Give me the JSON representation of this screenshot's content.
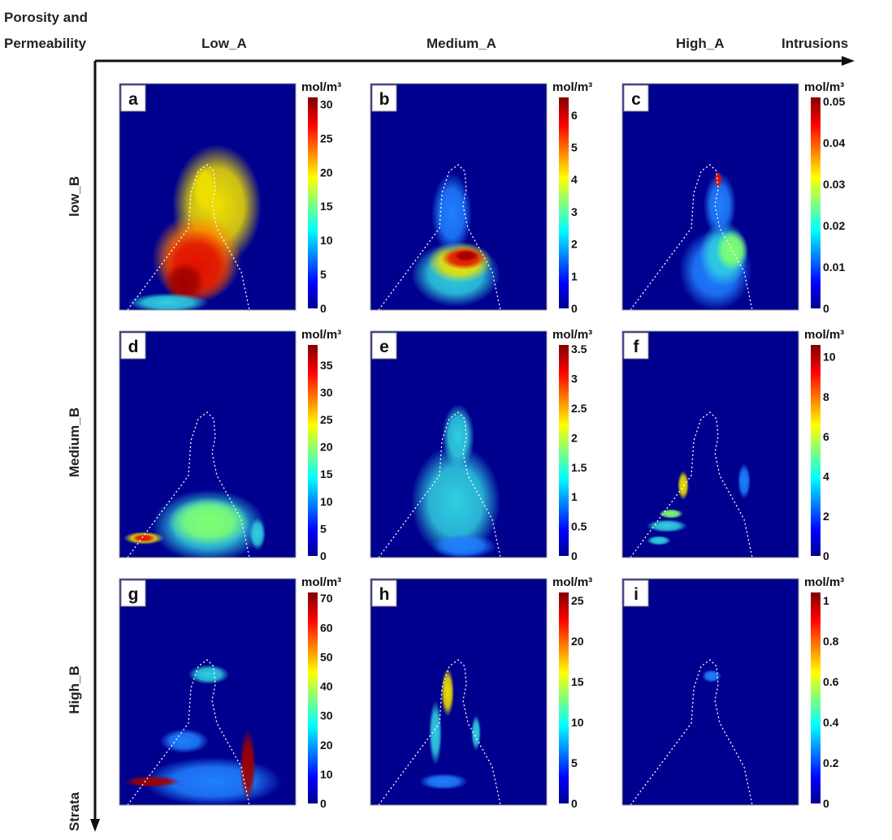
{
  "axes": {
    "corner_label_line1": "Porosity and",
    "corner_label_line2": "Permeability",
    "x_axis_label": "Intrusions",
    "y_axis_label": "Strata",
    "columns": [
      "Low_A",
      "Medium_A",
      "High_A"
    ],
    "rows": [
      "low_B",
      "Medium_B",
      "High_B"
    ]
  },
  "colors": {
    "background": "#00008f",
    "outline": "#ffffff"
  },
  "chart_data": [
    {
      "type": "heatmap",
      "panel": "a",
      "row": "low_B",
      "column": "Low_A",
      "unit": "mol/m³",
      "range": [
        0,
        31
      ],
      "ticks": [
        "0",
        "5",
        "10",
        "15",
        "20",
        "25",
        "30"
      ],
      "tick_values": [
        0,
        5,
        10,
        15,
        20,
        25,
        30
      ]
    },
    {
      "type": "heatmap",
      "panel": "b",
      "row": "low_B",
      "column": "Medium_A",
      "unit": "mol/m³",
      "range": [
        0,
        6.55
      ],
      "ticks": [
        "0",
        "1",
        "2",
        "3",
        "4",
        "5",
        "6"
      ],
      "tick_values": [
        0,
        1,
        2,
        3,
        4,
        5,
        6
      ]
    },
    {
      "type": "heatmap",
      "panel": "c",
      "row": "low_B",
      "column": "High_A",
      "unit": "mol/m³",
      "range": [
        0,
        0.051
      ],
      "ticks": [
        "0",
        "0.01",
        "0.02",
        "0.03",
        "0.04",
        "0.05"
      ],
      "tick_values": [
        0,
        0.01,
        0.02,
        0.03,
        0.04,
        0.05
      ]
    },
    {
      "type": "heatmap",
      "panel": "d",
      "row": "Medium_B",
      "column": "Low_A",
      "unit": "mol/m³",
      "range": [
        0,
        38.7
      ],
      "ticks": [
        "0",
        "5",
        "10",
        "15",
        "20",
        "25",
        "30",
        "35"
      ],
      "tick_values": [
        0,
        5,
        10,
        15,
        20,
        25,
        30,
        35
      ]
    },
    {
      "type": "heatmap",
      "panel": "e",
      "row": "Medium_B",
      "column": "Medium_A",
      "unit": "mol/m³",
      "range": [
        0,
        3.57
      ],
      "ticks": [
        "0",
        "0.5",
        "1",
        "1.5",
        "2",
        "2.5",
        "3",
        "3.5"
      ],
      "tick_values": [
        0,
        0.5,
        1,
        1.5,
        2,
        2.5,
        3,
        3.5
      ]
    },
    {
      "type": "heatmap",
      "panel": "f",
      "row": "Medium_B",
      "column": "High_A",
      "unit": "mol/m³",
      "range": [
        0,
        10.6
      ],
      "ticks": [
        "0",
        "2",
        "4",
        "6",
        "8",
        "10"
      ],
      "tick_values": [
        0,
        2,
        4,
        6,
        8,
        10
      ]
    },
    {
      "type": "heatmap",
      "panel": "g",
      "row": "High_B",
      "column": "Low_A",
      "unit": "mol/m³",
      "range": [
        0,
        72
      ],
      "ticks": [
        "0",
        "10",
        "20",
        "30",
        "40",
        "50",
        "60",
        "70"
      ],
      "tick_values": [
        0,
        10,
        20,
        30,
        40,
        50,
        60,
        70
      ]
    },
    {
      "type": "heatmap",
      "panel": "h",
      "row": "High_B",
      "column": "Medium_A",
      "unit": "mol/m³",
      "range": [
        0,
        26
      ],
      "ticks": [
        "0",
        "5",
        "10",
        "15",
        "20",
        "25"
      ],
      "tick_values": [
        0,
        5,
        10,
        15,
        20,
        25
      ]
    },
    {
      "type": "heatmap",
      "panel": "i",
      "row": "High_B",
      "column": "High_A",
      "unit": "mol/m³",
      "range": [
        0,
        1.04
      ],
      "ticks": [
        "0",
        "0.2",
        "0.4",
        "0.6",
        "0.8",
        "1"
      ],
      "tick_values": [
        0,
        0.2,
        0.4,
        0.6,
        0.8,
        1
      ]
    }
  ]
}
